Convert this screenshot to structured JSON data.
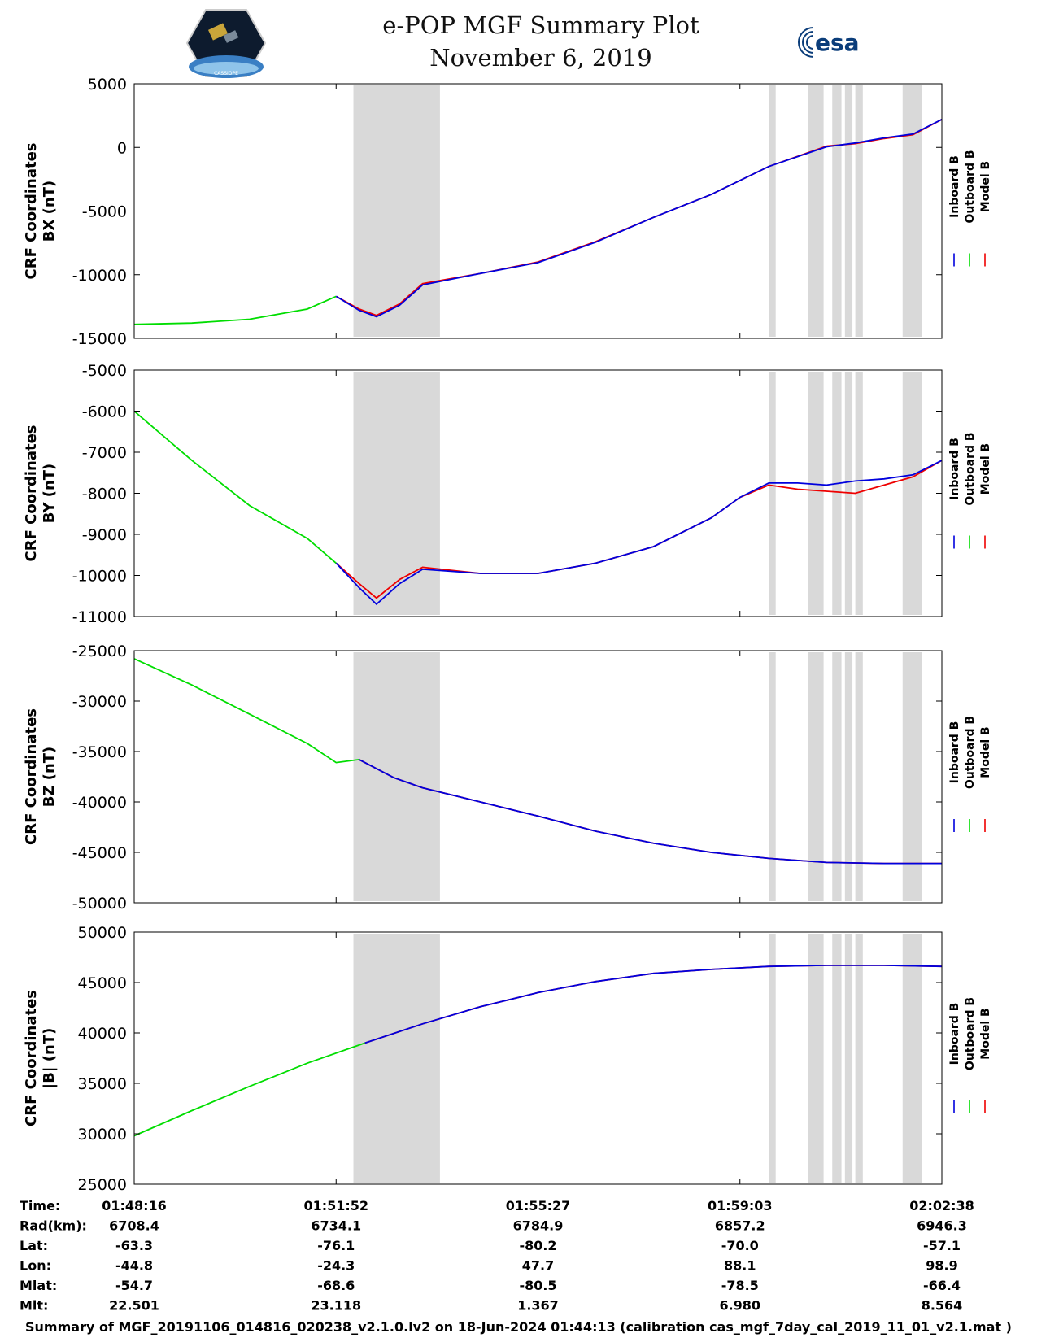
{
  "header": {
    "title": "e-POP MGF Summary Plot",
    "date": "November 6, 2019",
    "esa_logo_text": "esa",
    "mission_logo_text": "CASSIOPE"
  },
  "colors": {
    "inboard": "#0000dd",
    "outboard": "#00dd00",
    "model": "#ee0000",
    "shade": "#d9d9d9"
  },
  "legend": [
    "Inboard B",
    "Outboard B",
    "Model B"
  ],
  "chart_data": [
    {
      "type": "line",
      "title": "",
      "xlabel": "",
      "ylabel_line1": "CRF Coordinates",
      "ylabel_line2": "BX (nT)",
      "ylim": [
        -15000,
        5000
      ],
      "yticks": [
        5000,
        0,
        -5000,
        -10000,
        -15000
      ],
      "x": [
        0,
        2,
        3.5,
        4,
        4.5,
        5,
        6,
        7,
        8,
        9,
        10,
        11,
        12,
        13,
        14
      ],
      "series": [
        {
          "name": "Outboard B",
          "x": [
            0,
            1,
            2,
            3,
            3.5
          ],
          "values": [
            -13900,
            -13800,
            -13500,
            -12700,
            -11700
          ]
        },
        {
          "name": "Model B",
          "x": [
            3.5,
            3.9,
            4.2,
            4.6,
            5,
            6,
            7,
            8,
            9,
            10,
            11,
            12,
            12.5,
            13,
            13.5,
            14
          ],
          "values": [
            -11700,
            -12700,
            -13200,
            -12300,
            -10700,
            -9900,
            -9000,
            -7400,
            -5500,
            -3700,
            -1500,
            100,
            300,
            700,
            1000,
            2200
          ]
        },
        {
          "name": "Inboard B",
          "x": [
            3.5,
            3.9,
            4.2,
            4.6,
            5,
            6,
            7,
            8,
            9,
            10,
            11,
            12,
            12.5,
            13,
            13.5,
            14
          ],
          "values": [
            -11700,
            -12800,
            -13300,
            -12400,
            -10800,
            -9900,
            -9050,
            -7450,
            -5500,
            -3700,
            -1500,
            50,
            350,
            750,
            1050,
            2200
          ]
        }
      ]
    },
    {
      "type": "line",
      "ylabel_line1": "CRF Coordinates",
      "ylabel_line2": "BY (nT)",
      "ylim": [
        -11000,
        -5000
      ],
      "yticks": [
        -5000,
        -6000,
        -7000,
        -8000,
        -9000,
        -10000,
        -11000
      ],
      "series": [
        {
          "name": "Outboard B",
          "x": [
            0,
            1,
            2,
            3,
            3.5
          ],
          "values": [
            -6000,
            -7200,
            -8300,
            -9100,
            -9700
          ]
        },
        {
          "name": "Model B",
          "x": [
            3.5,
            3.9,
            4.2,
            4.6,
            5,
            6,
            7,
            8,
            9,
            10,
            10.5,
            11,
            11.5,
            12,
            12.5,
            13,
            13.5,
            14
          ],
          "values": [
            -9700,
            -10200,
            -10550,
            -10100,
            -9800,
            -9950,
            -9950,
            -9700,
            -9300,
            -8600,
            -8100,
            -7800,
            -7900,
            -7950,
            -8000,
            -7800,
            -7600,
            -7200
          ]
        },
        {
          "name": "Inboard B",
          "x": [
            3.5,
            3.9,
            4.2,
            4.6,
            5,
            6,
            7,
            8,
            9,
            10,
            10.5,
            11,
            11.5,
            12,
            12.5,
            13,
            13.5,
            14
          ],
          "values": [
            -9700,
            -10300,
            -10700,
            -10200,
            -9850,
            -9950,
            -9950,
            -9700,
            -9300,
            -8600,
            -8100,
            -7750,
            -7750,
            -7800,
            -7700,
            -7650,
            -7550,
            -7200
          ]
        }
      ]
    },
    {
      "type": "line",
      "ylabel_line1": "CRF Coordinates",
      "ylabel_line2": "BZ (nT)",
      "ylim": [
        -50000,
        -25000
      ],
      "yticks": [
        -25000,
        -30000,
        -35000,
        -40000,
        -45000,
        -50000
      ],
      "series": [
        {
          "name": "Outboard B",
          "x": [
            0,
            1,
            2,
            3,
            3.5,
            3.9
          ],
          "values": [
            -25800,
            -28400,
            -31300,
            -34200,
            -36100,
            -35800
          ]
        },
        {
          "name": "Model B",
          "x": [
            3.9,
            4.5,
            5,
            6,
            7,
            8,
            9,
            10,
            11,
            12,
            13,
            14
          ],
          "values": [
            -35800,
            -37600,
            -38600,
            -40000,
            -41400,
            -42900,
            -44100,
            -45000,
            -45600,
            -46000,
            -46100,
            -46100
          ]
        },
        {
          "name": "Inboard B",
          "x": [
            3.9,
            4.5,
            5,
            6,
            7,
            8,
            9,
            10,
            11,
            12,
            13,
            14
          ],
          "values": [
            -35800,
            -37600,
            -38600,
            -40000,
            -41400,
            -42900,
            -44100,
            -45000,
            -45600,
            -46000,
            -46100,
            -46100
          ]
        }
      ]
    },
    {
      "type": "line",
      "ylabel_line1": "CRF Coordinates",
      "ylabel_line2": "|B| (nT)",
      "ylim": [
        25000,
        50000
      ],
      "yticks": [
        50000,
        45000,
        40000,
        35000,
        30000,
        25000
      ],
      "series": [
        {
          "name": "Outboard B",
          "x": [
            0,
            1,
            2,
            3,
            4
          ],
          "values": [
            29800,
            32300,
            34700,
            37000,
            39000
          ]
        },
        {
          "name": "Model B",
          "x": [
            4,
            5,
            6,
            7,
            8,
            9,
            10,
            11,
            12,
            13,
            14
          ],
          "values": [
            39000,
            40900,
            42600,
            44000,
            45100,
            45900,
            46300,
            46600,
            46700,
            46700,
            46600
          ]
        },
        {
          "name": "Inboard B",
          "x": [
            4,
            5,
            6,
            7,
            8,
            9,
            10,
            11,
            12,
            13,
            14
          ],
          "values": [
            39000,
            40900,
            42600,
            44000,
            45100,
            45900,
            46300,
            46600,
            46700,
            46700,
            46600
          ]
        }
      ]
    }
  ],
  "x_axis": {
    "domain": [
      0,
      14
    ],
    "ticks": [
      0,
      3.5,
      7,
      10.5,
      14
    ]
  },
  "shaded_intervals": [
    [
      3.8,
      5.3
    ],
    [
      11.0,
      11.12
    ],
    [
      11.68,
      11.95
    ],
    [
      12.1,
      12.26
    ],
    [
      12.32,
      12.45
    ],
    [
      12.5,
      12.63
    ],
    [
      13.32,
      13.65
    ]
  ],
  "ephemeris": {
    "row_labels": [
      "Time:",
      "Rad(km):",
      "Lat:",
      "Lon:",
      "Mlat:",
      "Mlt:"
    ],
    "columns": [
      [
        "01:48:16",
        "6708.4",
        "-63.3",
        "-44.8",
        "-54.7",
        "22.501"
      ],
      [
        "01:51:52",
        "6734.1",
        "-76.1",
        "-24.3",
        "-68.6",
        "23.118"
      ],
      [
        "01:55:27",
        "6784.9",
        "-80.2",
        "47.7",
        "-80.5",
        "1.367"
      ],
      [
        "01:59:03",
        "6857.2",
        "-70.0",
        "88.1",
        "-78.5",
        "6.980"
      ],
      [
        "02:02:38",
        "6946.3",
        "-57.1",
        "98.9",
        "-66.4",
        "8.564"
      ]
    ]
  },
  "footer": "Summary of MGF_20191106_014816_020238_v2.1.0.lv2 on 18-Jun-2024 01:44:13 (calibration cas_mgf_7day_cal_2019_11_01_v2.1.mat )"
}
